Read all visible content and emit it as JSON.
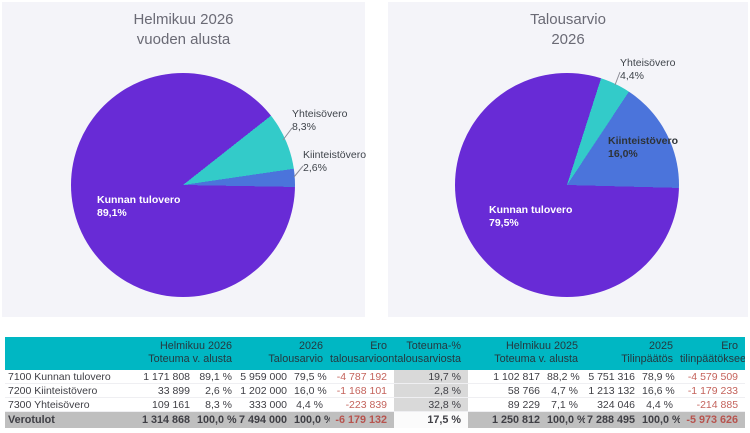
{
  "colors": {
    "purple": "#682BD6",
    "teal": "#33CBC9",
    "blue": "#4B74DB",
    "header_teal": "#00B7C3",
    "negative_red": "#C4635C",
    "card_bg": "#F4F4F9",
    "gray_column": "#D9D9D9",
    "total_row_gray": "#BFBFBF"
  },
  "chart_data": [
    {
      "type": "pie",
      "title_line1": "Helmikuu 2026",
      "title_line2": "vuoden alusta",
      "start_angle_deg": 91,
      "legend_position": "none",
      "slices": [
        {
          "label": "Kunnan tulovero",
          "value_pct": 89.1,
          "pct_text": "89,1%",
          "color": "#682BD6"
        },
        {
          "label": "Yhteisövero",
          "value_pct": 8.3,
          "pct_text": "8,3%",
          "color": "#33CBC9"
        },
        {
          "label": "Kiinteistövero",
          "value_pct": 2.6,
          "pct_text": "2,6%",
          "color": "#4B74DB"
        }
      ]
    },
    {
      "type": "pie",
      "title_line1": "Talousarvio",
      "title_line2": "2026",
      "start_angle_deg": 91.5,
      "legend_position": "none",
      "slices": [
        {
          "label": "Kunnan tulovero",
          "value_pct": 79.5,
          "pct_text": "79,5%",
          "color": "#682BD6"
        },
        {
          "label": "Yhteisövero",
          "value_pct": 4.4,
          "pct_text": "4,4%",
          "color": "#33CBC9"
        },
        {
          "label": "Kiinteistövero",
          "value_pct": 16.0,
          "pct_text": "16,0%",
          "color": "#4B74DB"
        }
      ]
    }
  ],
  "table": {
    "header_groups": [
      {
        "line1": "Helmikuu 2026",
        "line2": "Toteuma v. alusta"
      },
      {
        "line1": "2026",
        "line2": "Talousarvio"
      },
      {
        "line1": "Ero",
        "line2": "talousarvioon"
      },
      {
        "line1": "Toteuma-%",
        "line2": "talousarviosta"
      },
      {
        "line1": "Helmikuu 2025",
        "line2": "Toteuma v. alusta"
      },
      {
        "line1": "2025",
        "line2": "Tilinpäätös"
      },
      {
        "line1": "Ero",
        "line2": "tilinpäätökseen"
      }
    ],
    "rows": [
      {
        "label": "7100 Kunnan tulovero",
        "cells": [
          "1 171 808",
          "89,1 %",
          "5 959 000",
          "79,5 %",
          "-4 787 192",
          "19,7 %",
          "1 102 817",
          "88,2 %",
          "5 751 316",
          "78,9 %",
          "-4 579 509"
        ]
      },
      {
        "label": "7200 Kiinteistövero",
        "cells": [
          "33 899",
          "2,6 %",
          "1 202 000",
          "16,0 %",
          "-1 168 101",
          "2,8 %",
          "58 766",
          "4,7 %",
          "1 213 132",
          "16,6 %",
          "-1 179 233"
        ]
      },
      {
        "label": "7300 Yhteisövero",
        "cells": [
          "109 161",
          "8,3 %",
          "333 000",
          "4,4 %",
          "-223 839",
          "32,8 %",
          "89 229",
          "7,1 %",
          "324 046",
          "4,4 %",
          "-214 885"
        ]
      }
    ],
    "total": {
      "label": "Verotulot",
      "cells": [
        "1 314 868",
        "100,0 %",
        "7 494 000",
        "100,0 %",
        "-6 179 132",
        "17,5 %",
        "1 250 812",
        "100,0 %",
        "7 288 495",
        "100,0 %",
        "-5 973 626"
      ]
    }
  }
}
